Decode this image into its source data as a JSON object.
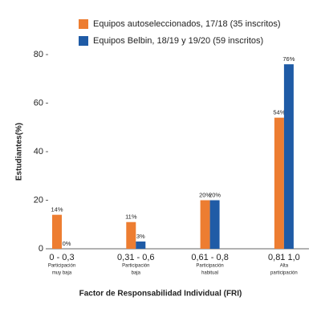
{
  "chart_data": {
    "type": "bar",
    "x_label": "Factor de Responsabilidad Individual (FRI)",
    "y_label": "Estudiantes(%)",
    "categories": [
      "0 - 0,3",
      "0,31 - 0,6",
      "0,61 - 0,8",
      "0,81 1,0"
    ],
    "category_notes": [
      [
        "Participación",
        "muy baja"
      ],
      [
        "Participación",
        "baja"
      ],
      [
        "Participación",
        "habitual"
      ],
      [
        "Alta",
        "participación"
      ]
    ],
    "series": [
      {
        "name": "Equipos autoseleccionados, 17/18 (35 inscritos)",
        "color": "#ed7d31",
        "values": [
          14,
          11,
          20,
          54
        ],
        "value_labels": [
          "14%",
          "11%",
          "20%",
          "54%"
        ]
      },
      {
        "name": "Equipos Belbin, 18/19 y 19/20 (59 inscritos)",
        "color": "#1f5ba6",
        "values": [
          0,
          3,
          20,
          76
        ],
        "value_labels": [
          "0%",
          "3%",
          "20%",
          "76%"
        ]
      }
    ],
    "ylim": [
      0,
      80
    ],
    "yticks": [
      0,
      20,
      40,
      60,
      80
    ],
    "grid": false
  }
}
